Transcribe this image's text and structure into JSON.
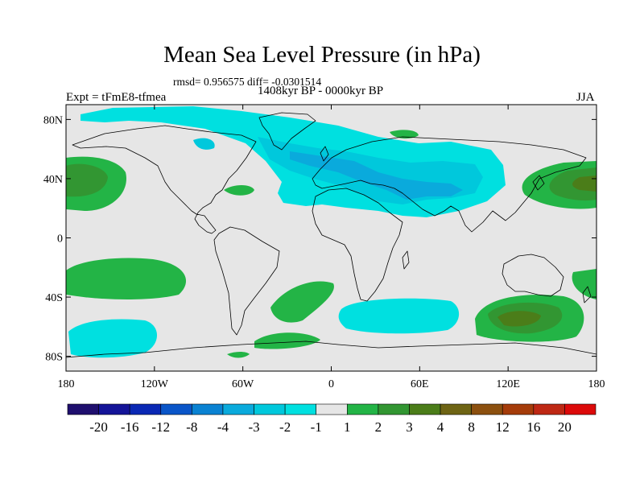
{
  "title": "Mean Sea Level Pressure (in hPa)",
  "stats": "rmsd= 0.956575 diff= -0.0301514",
  "period": "1408kyr BP - 0000kyr BP",
  "experiment": "Expt = tFmE8-tfmea",
  "season": "JJA",
  "map": {
    "projection": "cylindrical equidistant",
    "lon_range": [
      -180,
      180
    ],
    "lat_range": [
      -90,
      90
    ],
    "lat_ticks": [
      {
        "value": 80,
        "label": "80N"
      },
      {
        "value": 40,
        "label": "40N"
      },
      {
        "value": 0,
        "label": "0"
      },
      {
        "value": -40,
        "label": "40S"
      },
      {
        "value": -80,
        "label": "80S"
      }
    ],
    "lon_ticks": [
      {
        "value": -180,
        "label": "180"
      },
      {
        "value": -120,
        "label": "120W"
      },
      {
        "value": -60,
        "label": "60W"
      },
      {
        "value": 0,
        "label": "0"
      },
      {
        "value": 60,
        "label": "60E"
      },
      {
        "value": 120,
        "label": "120E"
      },
      {
        "value": 180,
        "label": "180"
      }
    ]
  },
  "colorbar": {
    "colors": [
      "#1f0f6e",
      "#141498",
      "#0a28b4",
      "#0a55c8",
      "#0a82d2",
      "#0aaadc",
      "#00c8dc",
      "#00e0e0",
      "#e6e6e6",
      "#23b446",
      "#329632",
      "#4b7d19",
      "#6e6414",
      "#8c500f",
      "#a53c0a",
      "#be2814",
      "#dc0a0a"
    ],
    "labels": [
      "-20",
      "-16",
      "-12",
      "-8",
      "-4",
      "-3",
      "-2",
      "-1",
      "1",
      "2",
      "3",
      "4",
      "8",
      "12",
      "16",
      "20"
    ]
  },
  "colors": {
    "background": "#e6e6e6",
    "cyan": "#00e0e0",
    "light_blue": "#00c8dc",
    "blue": "#0aaadc",
    "green": "#23b446",
    "dark_green": "#329632",
    "olive": "#4b7d19"
  }
}
